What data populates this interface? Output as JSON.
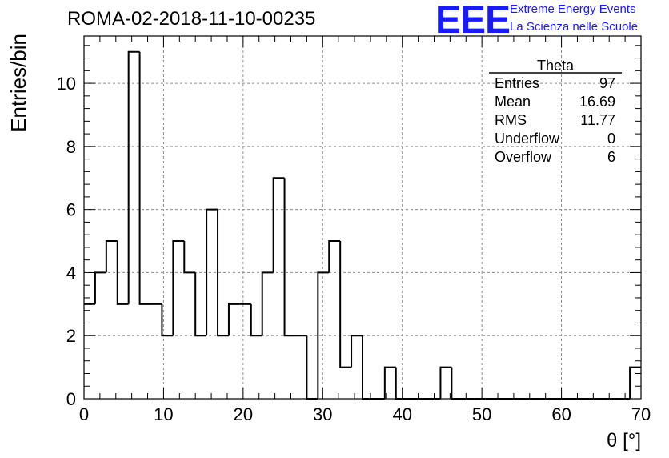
{
  "chart_data": {
    "type": "histogram",
    "title": "ROMA-02-2018-11-10-00235",
    "xlabel": "θ [°]",
    "ylabel": "Entries/bin",
    "xlim": [
      0,
      70
    ],
    "ylim": [
      0,
      11.5
    ],
    "xticks": [
      0,
      10,
      20,
      30,
      40,
      50,
      60,
      70
    ],
    "yticks": [
      0,
      2,
      4,
      6,
      8,
      10
    ],
    "grid": true,
    "bin_width": 1.4,
    "bin_edges_start": 0,
    "values": [
      3,
      4,
      5,
      3,
      11,
      3,
      3,
      2,
      5,
      4,
      2,
      6,
      2,
      3,
      3,
      2,
      4,
      7,
      2,
      2,
      0,
      4,
      5,
      1,
      2,
      0,
      0,
      1,
      0,
      0,
      0,
      0,
      1,
      0,
      0,
      0,
      0,
      0,
      0,
      0,
      0,
      0,
      0,
      0,
      0,
      0,
      0,
      0,
      0,
      1
    ],
    "color": "#000000"
  },
  "stats": {
    "name": "Theta",
    "rows": [
      {
        "label": "Entries",
        "value": "97"
      },
      {
        "label": "Mean",
        "value": "16.69"
      },
      {
        "label": "RMS",
        "value": "11.77"
      },
      {
        "label": "Underflow",
        "value": "0"
      },
      {
        "label": "Overflow",
        "value": "6"
      }
    ]
  },
  "logo": {
    "mark": "EEE",
    "line1": "Extreme Energy Events",
    "line2": "La Scienza nelle Scuole",
    "color": "#1a1aff"
  }
}
